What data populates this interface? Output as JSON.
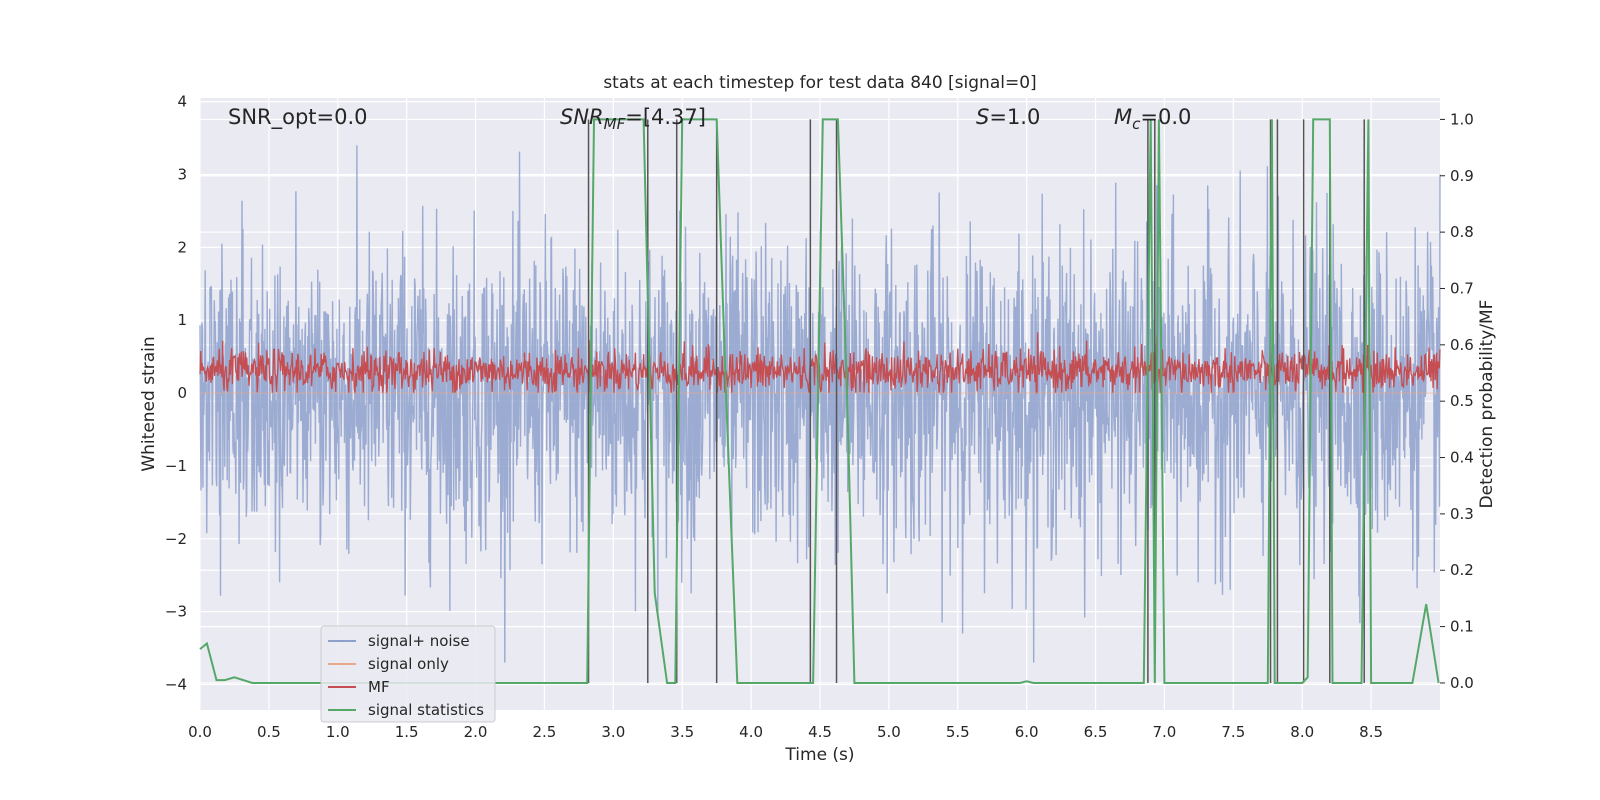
{
  "chart_data": {
    "type": "line",
    "title": "stats at each timestep for test data 840 [signal=0]",
    "xlabel": "Time (s)",
    "ylabel_left": "Whitened strain",
    "ylabel_right": "Detection probability/MF",
    "xlim": [
      0.0,
      9.0
    ],
    "ylim_left": [
      -4.35,
      4.05
    ],
    "ylim_right": [
      -0.048,
      1.038
    ],
    "x_ticks": [
      "0.0",
      "0.5",
      "1.0",
      "1.5",
      "2.0",
      "2.5",
      "3.0",
      "3.5",
      "4.0",
      "4.5",
      "5.0",
      "5.5",
      "6.0",
      "6.5",
      "7.0",
      "7.5",
      "8.0",
      "8.5"
    ],
    "y_left_ticks": [
      "4",
      "3",
      "2",
      "1",
      "0",
      "−1",
      "−2",
      "−3",
      "−4"
    ],
    "y_right_ticks": [
      "1.0",
      "0.9",
      "0.8",
      "0.7",
      "0.6",
      "0.5",
      "0.4",
      "0.3",
      "0.2",
      "0.1",
      "0.0"
    ],
    "grid": true,
    "legend_position": "lower-left",
    "annotations": {
      "snr_opt": "SNR_opt=0.0",
      "snr_mf": "SNR_MF=[4.37]",
      "s_val": "S=1.0",
      "mc_val": "M_c=0.0"
    },
    "series": [
      {
        "name": "signal+ noise",
        "axis": "left",
        "color": "#8da0cb",
        "description_note_free": true,
        "amplitude_range": [
          -3.7,
          3.4
        ]
      },
      {
        "name": "signal only",
        "axis": "left",
        "color": "#e8a68a",
        "values_constant": 0.0
      },
      {
        "name": "MF",
        "axis": "left",
        "color": "#c44e52",
        "amplitude_range": [
          0.0,
          0.95
        ]
      },
      {
        "name": "signal statistics",
        "axis": "right",
        "color": "#55a868",
        "x": [
          0.0,
          0.05,
          0.12,
          0.18,
          0.25,
          0.38,
          0.5,
          1.0,
          1.5,
          2.0,
          2.5,
          2.78,
          2.81,
          2.86,
          3.22,
          3.3,
          3.39,
          3.45,
          3.5,
          3.75,
          3.82,
          3.9,
          4.3,
          4.4,
          4.45,
          4.52,
          4.63,
          4.7,
          4.75,
          5.0,
          5.5,
          5.95,
          6.0,
          6.05,
          6.5,
          6.85,
          6.9,
          6.93,
          6.96,
          7.0,
          7.5,
          7.75,
          7.78,
          7.8,
          7.84,
          8.0,
          8.04,
          8.08,
          8.2,
          8.22,
          8.3,
          8.43,
          8.48,
          8.5,
          8.56,
          8.8,
          8.9,
          8.99
        ],
        "y": [
          0.06,
          0.07,
          0.005,
          0.005,
          0.01,
          0.0,
          0.0,
          0.0,
          0.0,
          0.0,
          0.0,
          0.0,
          0.0,
          1.0,
          1.0,
          0.16,
          0.0,
          0.0,
          1.0,
          1.0,
          0.5,
          0.0,
          0.0,
          0.0,
          0.0,
          1.0,
          1.0,
          0.48,
          0.0,
          0.0,
          0.0,
          0.0,
          0.003,
          0.0,
          0.0,
          0.0,
          1.0,
          0.0,
          1.0,
          0.0,
          0.0,
          0.0,
          1.0,
          0.0,
          0.0,
          0.0,
          0.01,
          1.0,
          1.0,
          0.0,
          0.0,
          0.0,
          1.0,
          0.0,
          0.0,
          0.0,
          0.14,
          0.0
        ]
      }
    ],
    "vertical_lines_x": [
      2.82,
      3.25,
      3.46,
      3.75,
      4.43,
      4.62,
      6.88,
      6.93,
      7.77,
      7.82,
      8.01,
      8.2,
      8.45
    ]
  }
}
